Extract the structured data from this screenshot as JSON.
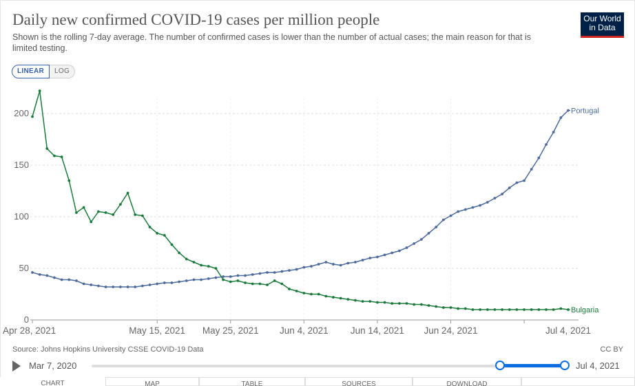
{
  "header": {
    "title": "Daily new confirmed COVID-19 cases per million people",
    "subtitle": "Shown is the rolling 7-day average. The number of confirmed cases is lower than the number of actual cases; the main reason for that is limited testing.",
    "logo_line1": "Our World",
    "logo_line2": "in Data"
  },
  "scale_toggle": {
    "linear": "LINEAR",
    "log": "LOG",
    "selected": "LINEAR"
  },
  "footer": {
    "source": "Source: Johns Hopkins University CSSE COVID-19 Data",
    "license": "CC BY"
  },
  "timeline": {
    "start_label": "Mar 7, 2020",
    "end_label": "Jul 4, 2021"
  },
  "tabs": [
    {
      "label": "CHART"
    },
    {
      "label": "MAP"
    },
    {
      "label": "TABLE"
    },
    {
      "label": "SOURCES"
    },
    {
      "label": "DOWNLOAD"
    },
    {
      "label": ""
    }
  ],
  "colors": {
    "portugal": "#4c6a9c",
    "bulgaria": "#00847e",
    "bulgaria_line": "#1a7a3a",
    "grid": "#dddddd"
  },
  "chart_data": {
    "type": "line",
    "title": "Daily new confirmed COVID-19 cases per million people",
    "xlabel": "",
    "ylabel": "",
    "ylim": [
      0,
      215
    ],
    "y_ticks": [
      0,
      50,
      100,
      150,
      200
    ],
    "x_ticks": [
      "Apr 28, 2021",
      "May 15, 2021",
      "May 25, 2021",
      "Jun 4, 2021",
      "Jun 14, 2021",
      "Jun 24, 2021",
      "Jul 4, 2021"
    ],
    "x_tick_days": [
      0,
      17,
      27,
      37,
      47,
      57,
      67
    ],
    "x_start": "Apr 28, 2021",
    "grid": true,
    "series": [
      {
        "name": "Portugal",
        "values": [
          46,
          44,
          43,
          41,
          39,
          39,
          38,
          35,
          34,
          33,
          32,
          32,
          32,
          32,
          32,
          33,
          34,
          35,
          36,
          36,
          37,
          38,
          39,
          39,
          40,
          41,
          42,
          42,
          43,
          43,
          44,
          45,
          46,
          46,
          47,
          48,
          49,
          51,
          52,
          54,
          56,
          54,
          53,
          55,
          56,
          58,
          60,
          61,
          63,
          65,
          67,
          70,
          74,
          78,
          84,
          90,
          97,
          101,
          105,
          107,
          109,
          111,
          114,
          118,
          122,
          128,
          133,
          135,
          146,
          157,
          170,
          182,
          196,
          203
        ]
      },
      {
        "name": "Bulgaria",
        "values": [
          197,
          222,
          166,
          159,
          158,
          135,
          104,
          109,
          95,
          105,
          104,
          102,
          112,
          123,
          102,
          101,
          90,
          84,
          82,
          73,
          65,
          59,
          56,
          53,
          52,
          50,
          39,
          37,
          38,
          36,
          35,
          35,
          34,
          38,
          35,
          30,
          28,
          26,
          25,
          25,
          23,
          22,
          21,
          20,
          19,
          18,
          18,
          17,
          17,
          16,
          16,
          16,
          15,
          15,
          14,
          13,
          12,
          12,
          11,
          11,
          10,
          10,
          10,
          10,
          10,
          10,
          10,
          10,
          10,
          10,
          10,
          10,
          11,
          10
        ]
      }
    ]
  }
}
